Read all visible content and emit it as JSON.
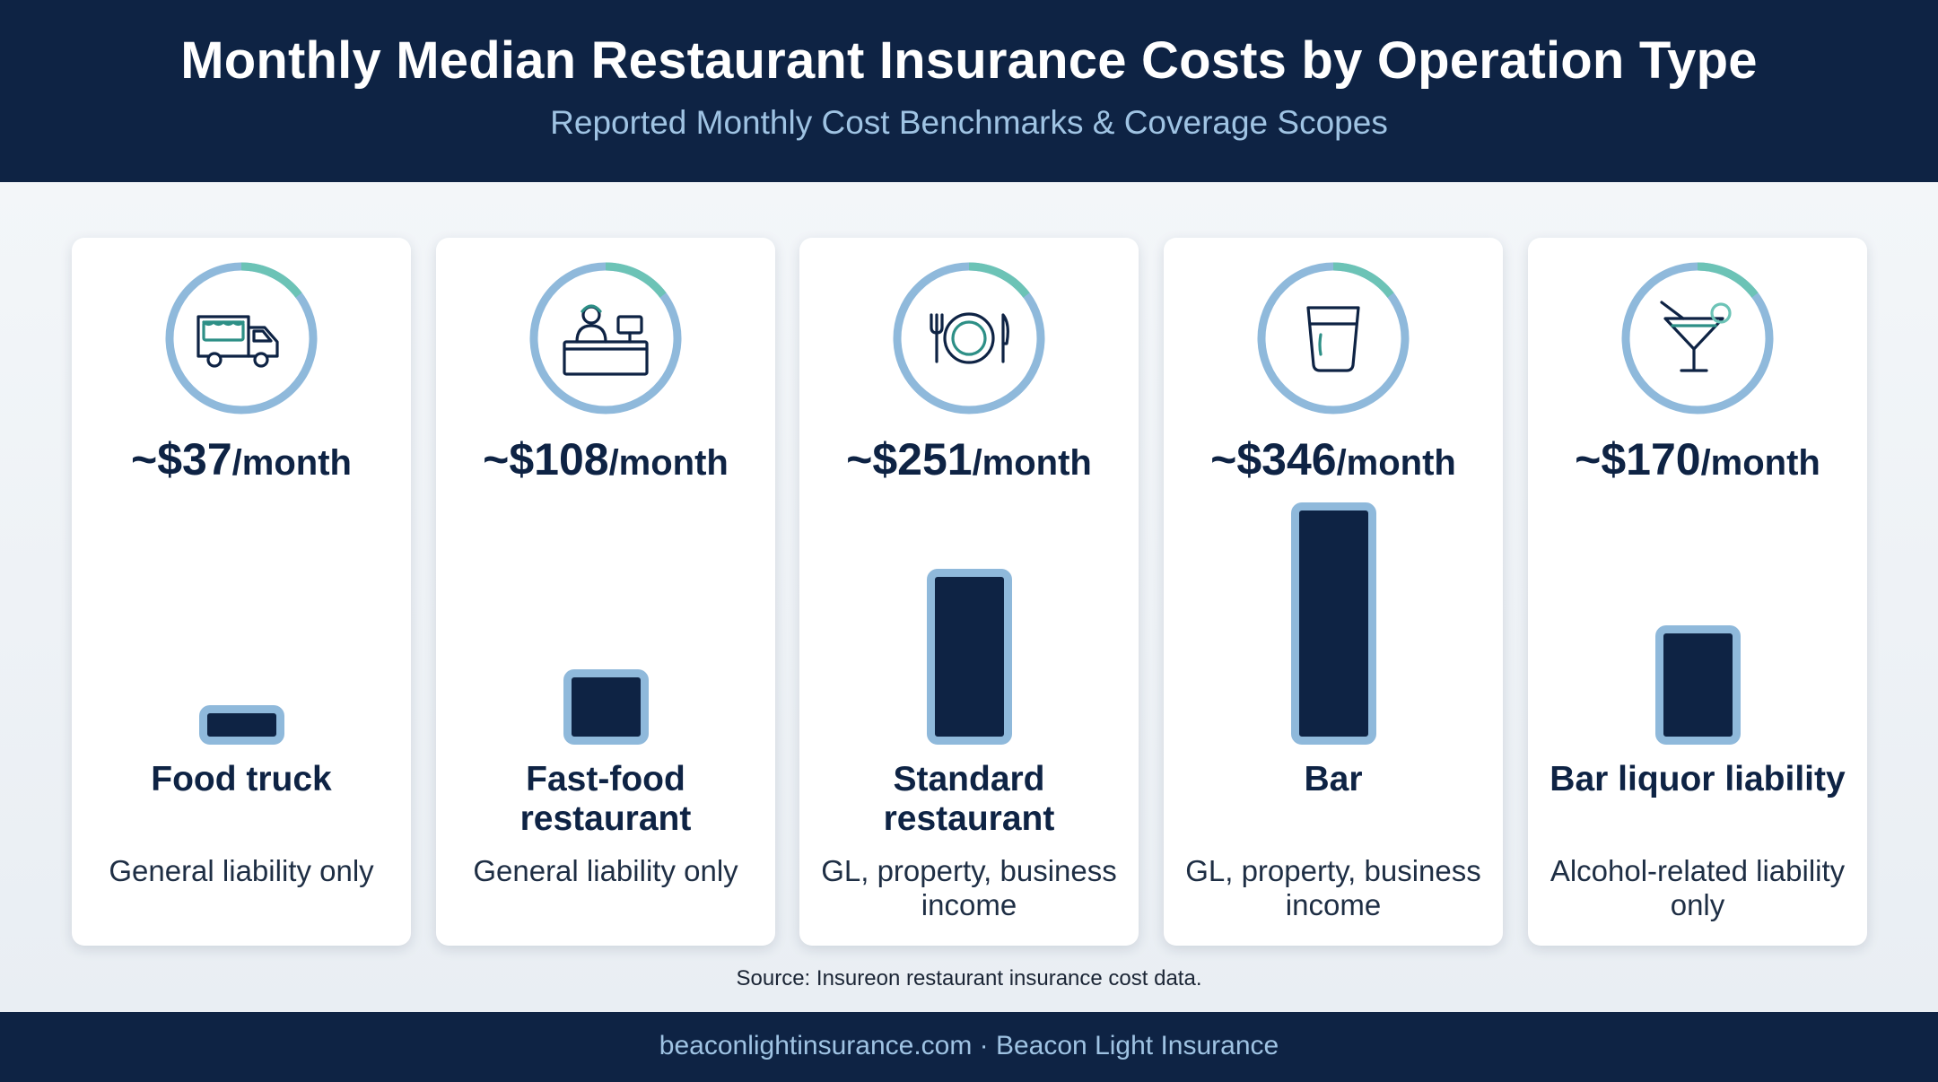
{
  "header": {
    "title": "Monthly Median Restaurant Insurance Costs by Operation Type",
    "subtitle": "Reported Monthly Cost Benchmarks & Coverage Scopes"
  },
  "colors": {
    "navy": "#0e2344",
    "bar_border": "#8fb9db",
    "ring": "#8fb9db",
    "ring_accent": "#6cc3b6",
    "accent_text": "#9fc3e3"
  },
  "chart_data": {
    "type": "bar",
    "title": "Monthly Median Restaurant Insurance Costs by Operation Type",
    "subtitle": "Reported Monthly Cost Benchmarks & Coverage Scopes",
    "categories": [
      "Food truck",
      "Fast-food restaurant",
      "Standard restaurant",
      "Bar",
      "Bar liquor liability"
    ],
    "values": [
      37,
      108,
      251,
      346,
      170
    ],
    "unit": "$/month",
    "grid": false,
    "items": [
      {
        "icon": "food-truck-icon",
        "price": "~$37",
        "unit": "/month",
        "label": "Food truck",
        "desc": "General liability only",
        "value": 37
      },
      {
        "icon": "fast-food-counter-icon",
        "price": "~$108",
        "unit": "/month",
        "label": "Fast-food restaurant",
        "desc": "General liability only",
        "value": 108
      },
      {
        "icon": "plate-cutlery-icon",
        "price": "~$251",
        "unit": "/month",
        "label": "Standard restaurant",
        "desc": "GL, property, business income",
        "value": 251
      },
      {
        "icon": "beer-glass-icon",
        "price": "~$346",
        "unit": "/month",
        "label": "Bar",
        "desc": "GL, property, business income",
        "value": 346
      },
      {
        "icon": "cocktail-glass-icon",
        "price": "~$170",
        "unit": "/month",
        "label": "Bar liquor liability",
        "desc": "Alcohol-related liability only",
        "value": 170
      }
    ]
  },
  "source": "Source: Insureon restaurant insurance cost data.",
  "footer": {
    "text": "beaconlightinsurance.com · Beacon Light Insurance"
  }
}
